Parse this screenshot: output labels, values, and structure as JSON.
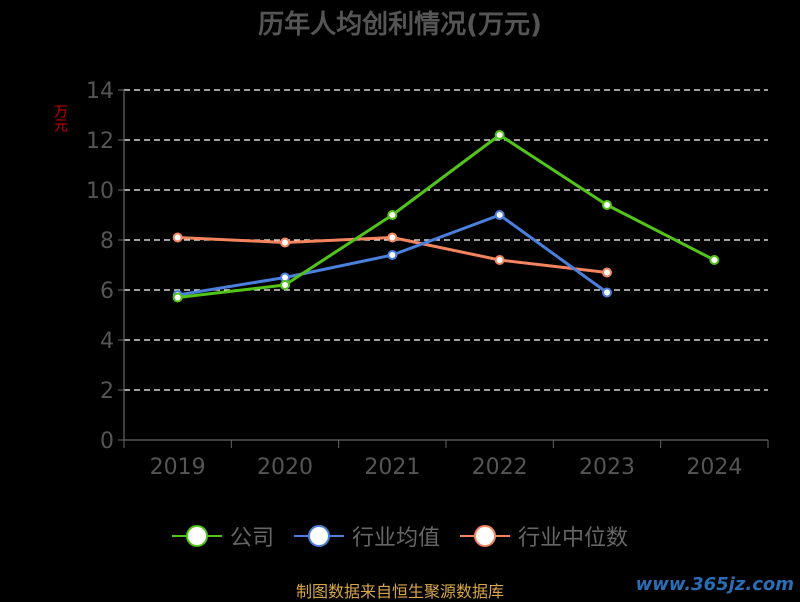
{
  "chart_data": {
    "type": "line",
    "title": "历年人均创利情况(万元)",
    "ylabel": "万元",
    "xlabel": "",
    "categories": [
      "2019",
      "2020",
      "2021",
      "2022",
      "2023",
      "2024"
    ],
    "ylim": [
      0,
      14
    ],
    "yticks": [
      0,
      2,
      4,
      6,
      8,
      10,
      12,
      14
    ],
    "grid": true,
    "legend_position": "bottom",
    "series": [
      {
        "name": "公司",
        "color": "#52c41a",
        "values": [
          5.7,
          6.2,
          9.0,
          12.2,
          9.4,
          7.2
        ]
      },
      {
        "name": "行业均值",
        "color": "#4a7fdc",
        "values": [
          5.8,
          6.5,
          7.4,
          9.0,
          5.9,
          null
        ]
      },
      {
        "name": "行业中位数",
        "color": "#f4845f",
        "values": [
          8.1,
          7.9,
          8.1,
          7.2,
          6.7,
          null
        ]
      }
    ]
  },
  "source_note": "制图数据来自恒生聚源数据库",
  "watermark": "www.365jz.com"
}
